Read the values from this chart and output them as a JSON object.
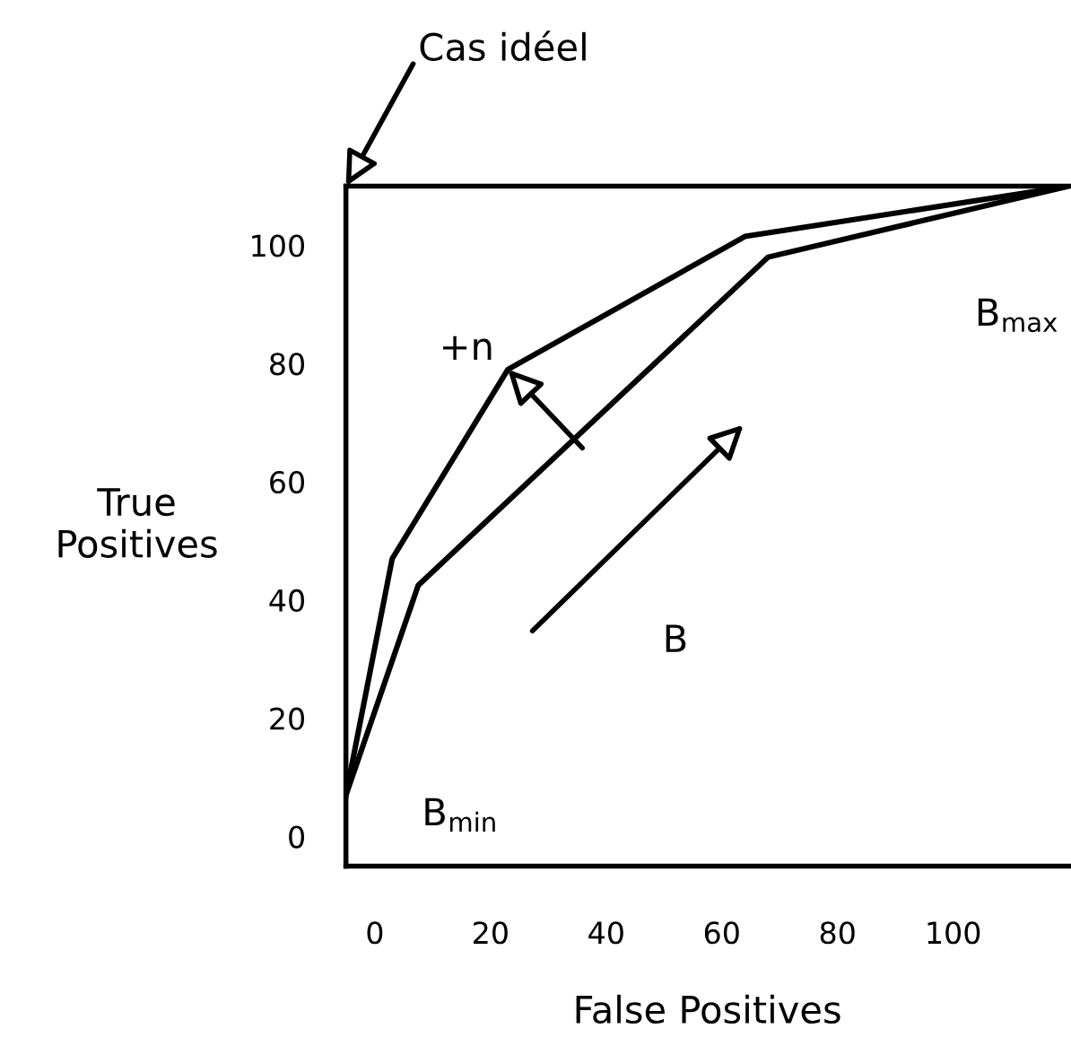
{
  "chart_data": {
    "type": "line",
    "xlabel": "False Positives",
    "ylabel": "True\nPositives",
    "xlim": [
      -5,
      120
    ],
    "ylim": [
      -5,
      110
    ],
    "xticks": [
      0,
      20,
      40,
      60,
      80,
      100
    ],
    "yticks": [
      0,
      20,
      40,
      60,
      80,
      100
    ],
    "grid": false,
    "legend": false,
    "marker": "none",
    "line_style": "solid",
    "series": [
      {
        "color": "#000000",
        "x": [
          -5,
          3,
          23,
          64,
          120
        ],
        "values": [
          7,
          47,
          79,
          101.5,
          110
        ]
      },
      {
        "color": "#000000",
        "x": [
          -5,
          7.5,
          68,
          120
        ],
        "values": [
          7,
          42.5,
          98,
          110
        ]
      }
    ],
    "annotations": [
      "Cas idéel",
      {
        "text": "+n",
        "x": 23,
        "y": 79
      },
      "B",
      "B$_{min}$",
      "B$_{max}$"
    ]
  }
}
